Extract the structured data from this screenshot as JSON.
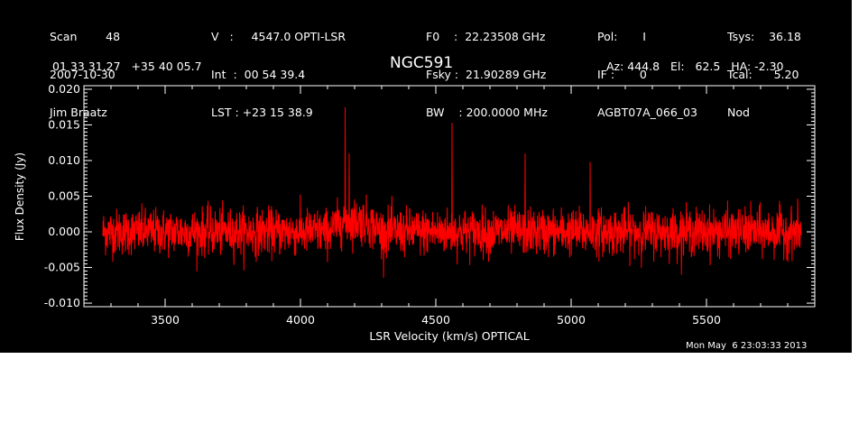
{
  "header": {
    "col1": [
      "Scan        48",
      "2007-10-30",
      "Jim Braatz"
    ],
    "col2": [
      "V   :     4547.0 OPTI-LSR",
      "Int  :  00 54 39.4",
      "LST : +23 15 38.9"
    ],
    "col3": [
      "F0    :  22.23508 GHz",
      "Fsky :  21.90289 GHz",
      "BW    : 200.0000 MHz"
    ],
    "col4": [
      "Pol:       I",
      "IF :       0",
      "AGBT07A_066_03"
    ],
    "col5": [
      "Tsys:    36.18",
      "Tcal:      5.20",
      "Nod"
    ],
    "coords": "01 33 31.27   +35 40 05.7",
    "source": "NGC591",
    "azel": "Az: 444.8   El:   62.5   HA: -2.30"
  },
  "timestamp": "Mon May  6 23:03:33 2013",
  "colors": {
    "background": "#000000",
    "axes": "#ffffff",
    "series": "#ff0000"
  },
  "chart_data": {
    "type": "line",
    "title": "NGC591",
    "xlabel": "LSR Velocity (km/s) OPTICAL",
    "ylabel": "Flux Density (Jy)",
    "xlim": [
      3200,
      5900
    ],
    "ylim": [
      -0.0105,
      0.0205
    ],
    "x_ticks": [
      3500,
      4000,
      4500,
      5000,
      5500
    ],
    "x_tick_labels": [
      "3500",
      "4000",
      "4500",
      "5000",
      "5500"
    ],
    "y_ticks": [
      -0.01,
      -0.005,
      0.0,
      0.005,
      0.01,
      0.015,
      0.02
    ],
    "y_tick_labels": [
      "-0.010",
      "-0.005",
      "0.000",
      "0.005",
      "0.010",
      "0.015",
      "0.020"
    ],
    "x_range": [
      3270,
      5850
    ],
    "noise_rms": 0.0016,
    "baseline_points": [
      [
        3270,
        0.0
      ],
      [
        4100,
        0.0
      ],
      [
        4160,
        0.0015
      ],
      [
        4240,
        0.0015
      ],
      [
        4300,
        0.0
      ],
      [
        5850,
        0.0
      ]
    ],
    "spikes": [
      {
        "x": 4165,
        "y": 0.0175
      },
      {
        "x": 4180,
        "y": 0.011
      },
      {
        "x": 4560,
        "y": 0.0153
      },
      {
        "x": 4830,
        "y": 0.011
      },
      {
        "x": 5070,
        "y": 0.0098
      }
    ],
    "series": [
      {
        "name": "",
        "color": "#ff0000"
      }
    ]
  }
}
